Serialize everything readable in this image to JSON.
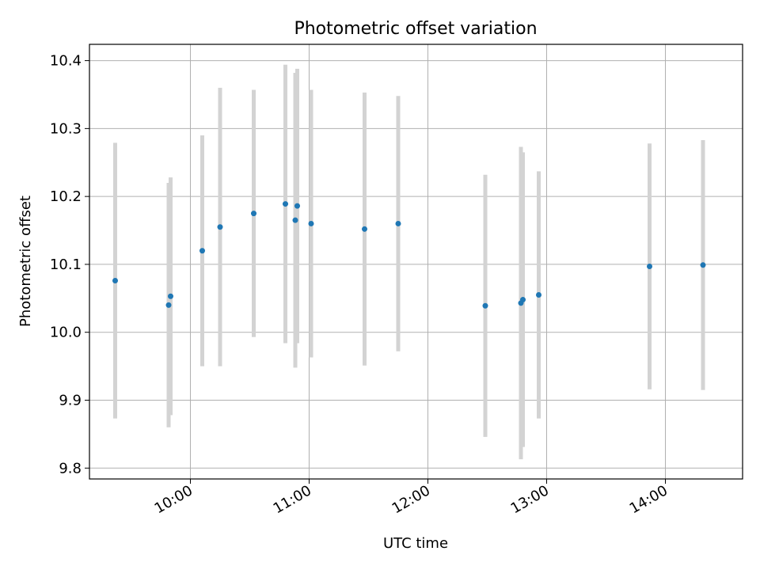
{
  "chart_data": {
    "type": "scatter",
    "title": "Photometric offset variation",
    "xlabel": "UTC time",
    "ylabel": "Photometric offset",
    "x_ticks": [
      "10:00",
      "11:00",
      "12:00",
      "13:00",
      "14:00"
    ],
    "y_ticks": [
      "9.8",
      "9.9",
      "10.0",
      "10.1",
      "10.2",
      "10.3",
      "10.4"
    ],
    "grid": true,
    "marker_color": "#1f77b4",
    "errorbar_color": "#d3d3d3",
    "series": [
      {
        "x": [
          "09:22",
          "09:49",
          "09:50",
          "10:06",
          "10:15",
          "10:32",
          "10:48",
          "10:53",
          "10:54",
          "11:01",
          "11:28",
          "11:45",
          "12:29",
          "12:47",
          "12:48",
          "12:56",
          "13:52",
          "14:19"
        ],
        "y": [
          10.076,
          10.04,
          10.053,
          10.12,
          10.155,
          10.175,
          10.189,
          10.165,
          10.186,
          10.16,
          10.152,
          10.16,
          10.039,
          10.043,
          10.048,
          10.055,
          10.097,
          10.099
        ],
        "yerr": [
          0.203,
          0.18,
          0.175,
          0.17,
          0.205,
          0.182,
          0.205,
          0.217,
          0.202,
          0.197,
          0.201,
          0.188,
          0.193,
          0.23,
          0.217,
          0.182,
          0.181,
          0.184
        ]
      }
    ]
  }
}
